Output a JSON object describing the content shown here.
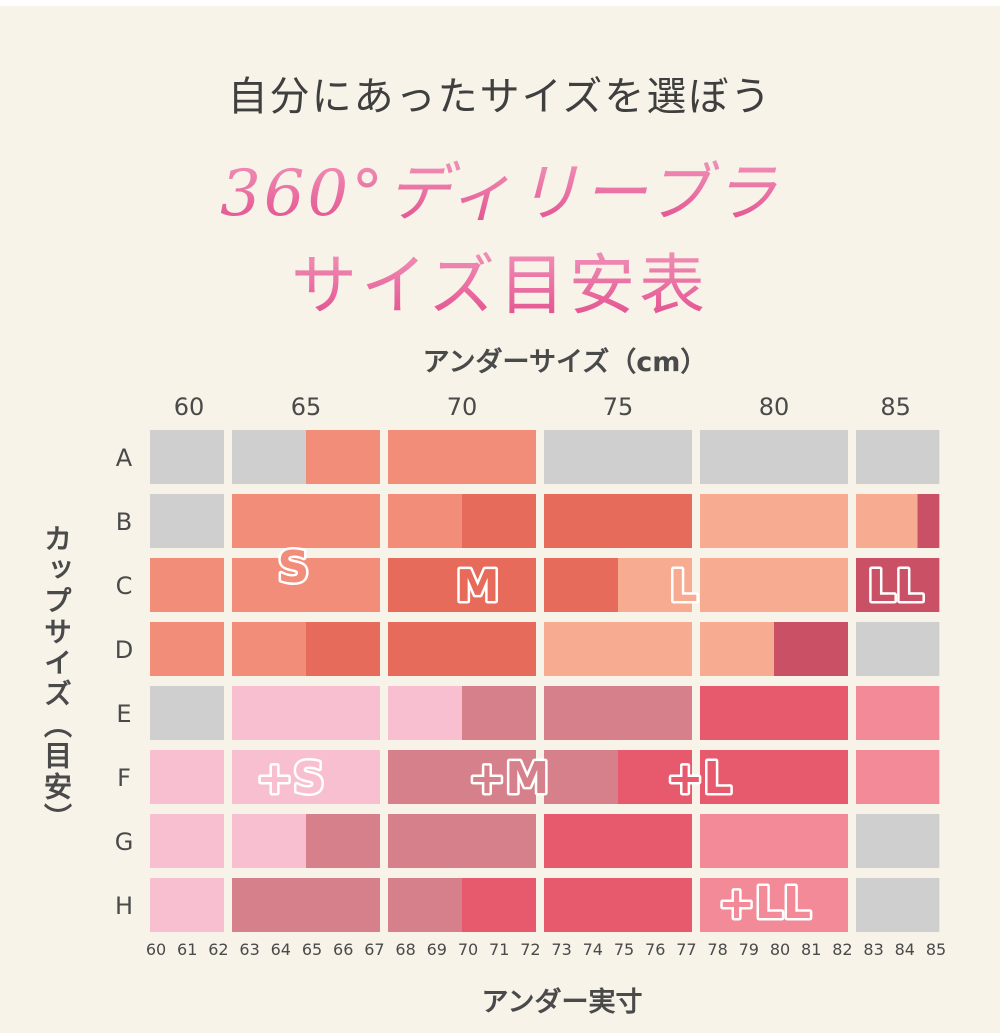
{
  "header": {
    "subtitle": "自分にあったサイズを選ぼう",
    "title_line1": "360°ディリーブラ",
    "title_line2": "サイズ目安表"
  },
  "chart_data": {
    "type": "heatmap",
    "xlabel": "アンダーサイズ（cm）",
    "x2label": "アンダー実寸",
    "ylabel": "カップサイズ（目安）",
    "nominal_columns": [
      "60",
      "65",
      "70",
      "75",
      "80",
      "85"
    ],
    "cup_sizes": [
      "A",
      "B",
      "C",
      "D",
      "E",
      "F",
      "G",
      "H"
    ],
    "actual_under_ticks": [
      "60",
      "61",
      "62",
      "63",
      "64",
      "65",
      "66",
      "67",
      "68",
      "69",
      "70",
      "71",
      "72",
      "73",
      "74",
      "75",
      "76",
      "77",
      "78",
      "79",
      "80",
      "81",
      "82",
      "83",
      "84",
      "85"
    ],
    "column_ranges": [
      [
        60,
        62.5
      ],
      [
        62.5,
        67.5
      ],
      [
        67.5,
        72.5
      ],
      [
        72.5,
        77.5
      ],
      [
        77.5,
        82.5
      ],
      [
        82.5,
        85.3
      ]
    ],
    "colors": {
      "none": "#cfcfcf",
      "S": "#f28d7a",
      "M": "#e76b5a",
      "L": "#f7ab90",
      "LL": "#c95065",
      "+S": "#f8bfd0",
      "+M": "#d5808a",
      "+L": "#e75a6d",
      "+LL": "#f28a98"
    },
    "cells": [
      {
        "cup": "A",
        "segments": [
          [
            60,
            62.5,
            "none"
          ],
          [
            62.5,
            65,
            "none"
          ],
          [
            65,
            67.5,
            "S"
          ],
          [
            67.5,
            72.5,
            "S"
          ],
          [
            72.5,
            77.5,
            "none"
          ],
          [
            77.5,
            82.5,
            "none"
          ],
          [
            82.5,
            85.3,
            "none"
          ]
        ]
      },
      {
        "cup": "B",
        "segments": [
          [
            60,
            62.5,
            "none"
          ],
          [
            62.5,
            67.5,
            "S"
          ],
          [
            67.5,
            70,
            "S"
          ],
          [
            70,
            72.5,
            "M"
          ],
          [
            72.5,
            77.5,
            "M"
          ],
          [
            77.5,
            82.5,
            "L"
          ],
          [
            82.5,
            84.6,
            "L"
          ],
          [
            84.6,
            85.3,
            "LL"
          ]
        ]
      },
      {
        "cup": "C",
        "segments": [
          [
            60,
            62.5,
            "S"
          ],
          [
            62.5,
            67.5,
            "S"
          ],
          [
            67.5,
            72.5,
            "M"
          ],
          [
            72.5,
            75,
            "M"
          ],
          [
            75,
            77.5,
            "L"
          ],
          [
            77.5,
            82.5,
            "L"
          ],
          [
            82.5,
            85.3,
            "LL"
          ]
        ]
      },
      {
        "cup": "D",
        "segments": [
          [
            60,
            62.5,
            "S"
          ],
          [
            62.5,
            65,
            "S"
          ],
          [
            65,
            67.5,
            "M"
          ],
          [
            67.5,
            72.5,
            "M"
          ],
          [
            72.5,
            77.5,
            "L"
          ],
          [
            77.5,
            80,
            "L"
          ],
          [
            80,
            82.5,
            "LL"
          ],
          [
            82.5,
            85.3,
            "none"
          ]
        ]
      },
      {
        "cup": "E",
        "segments": [
          [
            60,
            62.5,
            "none"
          ],
          [
            62.5,
            67.5,
            "+S"
          ],
          [
            67.5,
            70,
            "+S"
          ],
          [
            70,
            72.5,
            "+M"
          ],
          [
            72.5,
            77.5,
            "+M"
          ],
          [
            77.5,
            82.5,
            "+L"
          ],
          [
            82.5,
            85.3,
            "+LL"
          ]
        ]
      },
      {
        "cup": "F",
        "segments": [
          [
            60,
            62.5,
            "+S"
          ],
          [
            62.5,
            67.5,
            "+S"
          ],
          [
            67.5,
            72.5,
            "+M"
          ],
          [
            72.5,
            75,
            "+M"
          ],
          [
            75,
            77.5,
            "+L"
          ],
          [
            77.5,
            82.5,
            "+L"
          ],
          [
            82.5,
            85.3,
            "+LL"
          ]
        ]
      },
      {
        "cup": "G",
        "segments": [
          [
            60,
            62.5,
            "+S"
          ],
          [
            62.5,
            65,
            "+S"
          ],
          [
            65,
            67.5,
            "+M"
          ],
          [
            67.5,
            72.5,
            "+M"
          ],
          [
            72.5,
            77.5,
            "+L"
          ],
          [
            77.5,
            82.5,
            "+LL"
          ],
          [
            82.5,
            85.3,
            "none"
          ]
        ]
      },
      {
        "cup": "H",
        "segments": [
          [
            60,
            62.5,
            "+S"
          ],
          [
            62.5,
            67.5,
            "+M"
          ],
          [
            67.5,
            70,
            "+M"
          ],
          [
            70,
            72.5,
            "+L"
          ],
          [
            72.5,
            77.5,
            "+L"
          ],
          [
            77.5,
            82.5,
            "+LL"
          ],
          [
            82.5,
            85.3,
            "none"
          ]
        ]
      }
    ],
    "size_labels": [
      {
        "text": "S",
        "x": 64.6,
        "cup": "B",
        "y_offset": 0.7
      },
      {
        "text": "M",
        "x": 70.5,
        "cup": "C",
        "y_offset": 0
      },
      {
        "text": "L",
        "x": 77.1,
        "cup": "C",
        "y_offset": 0
      },
      {
        "text": "LL",
        "x": 83.9,
        "cup": "C",
        "y_offset": 0
      },
      {
        "text": "+S",
        "x": 64.5,
        "cup": "F",
        "y_offset": 0
      },
      {
        "text": "+M",
        "x": 71.5,
        "cup": "F",
        "y_offset": 0
      },
      {
        "text": "+L",
        "x": 77.6,
        "cup": "F",
        "y_offset": 0
      },
      {
        "text": "+LL",
        "x": 79.7,
        "cup": "G",
        "y_offset": 0.95
      }
    ]
  }
}
